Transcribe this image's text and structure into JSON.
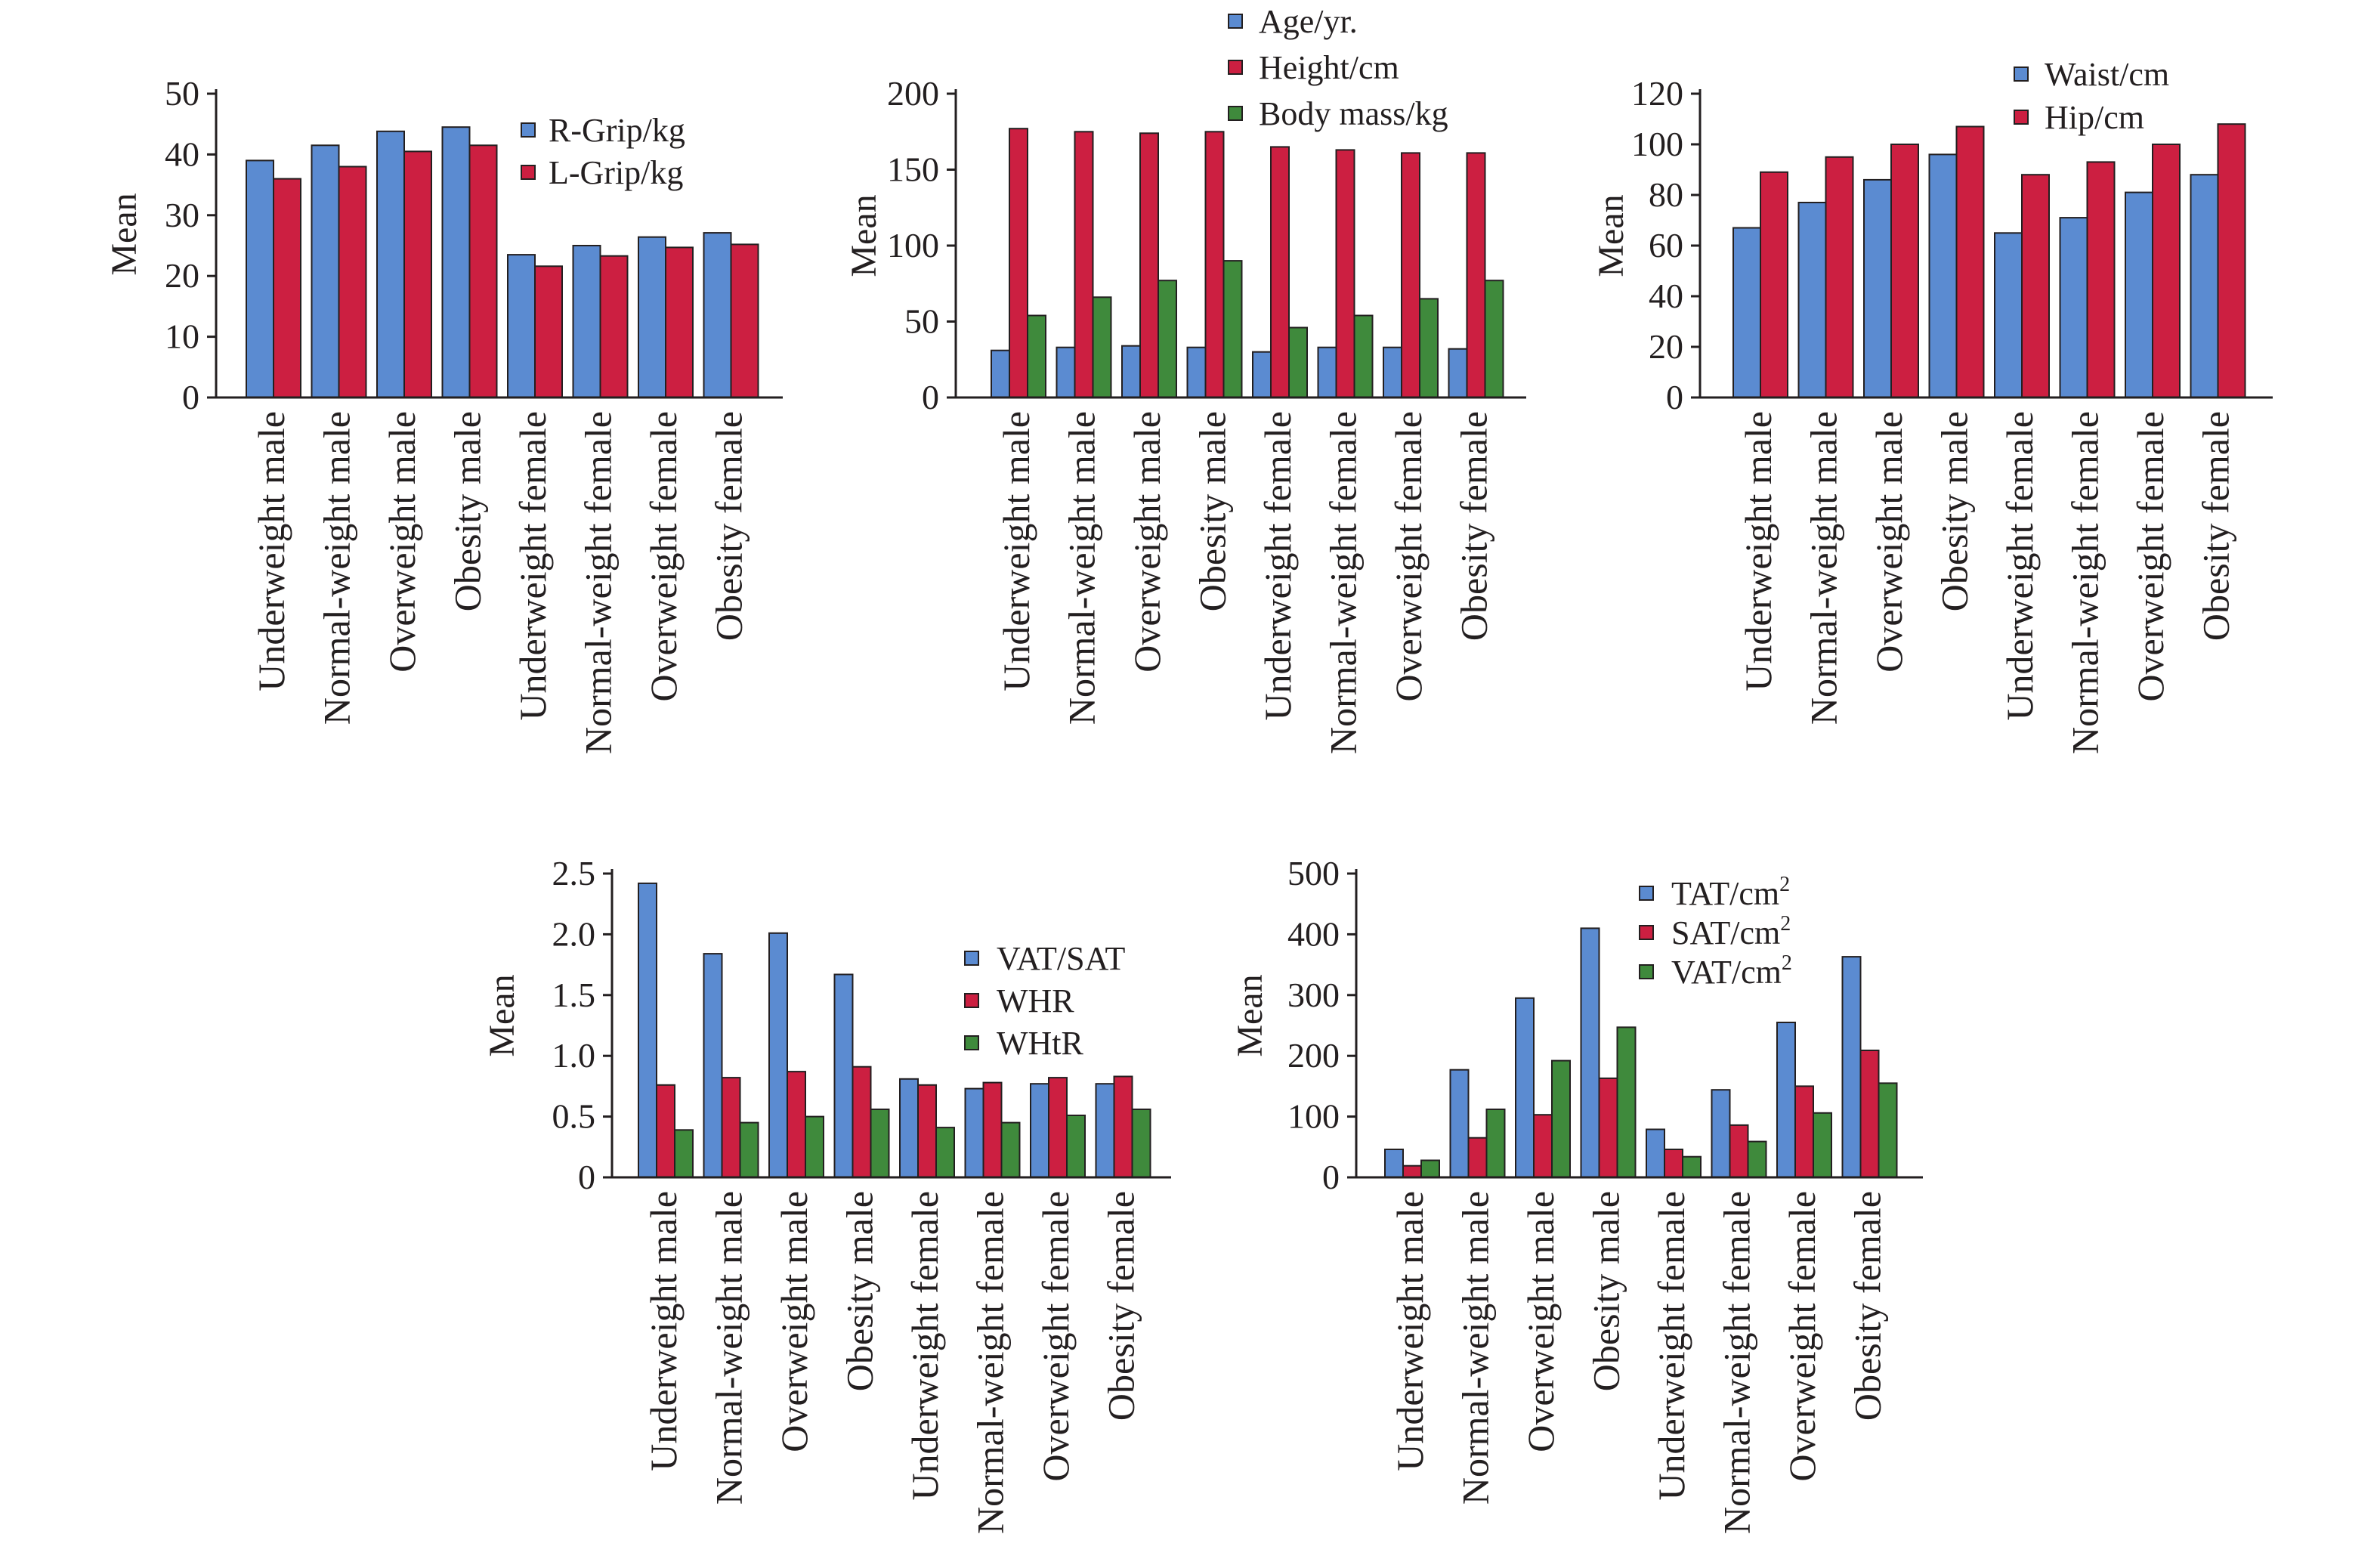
{
  "colors": {
    "blue": "#5b8bd1",
    "red": "#cc1f41",
    "green": "#3f8a3c",
    "axis": "#231f20"
  },
  "categories": [
    "Underweight male",
    "Normal-weight male",
    "Overweight male",
    "Obesity male",
    "Underweight female",
    "Normal-weight female",
    "Overweight female",
    "Obesity female"
  ],
  "chart_data": [
    {
      "type": "bar",
      "ylabel": "Mean",
      "ylim": [
        0,
        50
      ],
      "yticks": [
        "0",
        "10",
        "20",
        "30",
        "40",
        "50"
      ],
      "legend_position": "top-right",
      "series": [
        {
          "name": "R-Grip/kg",
          "color": "#5b8bd1",
          "values": [
            39.0,
            41.5,
            43.8,
            44.5,
            23.5,
            25.0,
            26.4,
            27.1
          ]
        },
        {
          "name": "L-Grip/kg",
          "color": "#cc1f41",
          "values": [
            36.0,
            38.0,
            40.5,
            41.5,
            21.6,
            23.3,
            24.7,
            25.2
          ]
        }
      ]
    },
    {
      "type": "bar",
      "ylabel": "Mean",
      "ylim": [
        0,
        200
      ],
      "yticks": [
        "0",
        "50",
        "100",
        "150",
        "200"
      ],
      "legend_position": "top",
      "series": [
        {
          "name": "Age/yr.",
          "color": "#5b8bd1",
          "values": [
            31,
            33,
            34,
            33,
            30,
            33,
            33,
            32
          ]
        },
        {
          "name": "Height/cm",
          "color": "#cc1f41",
          "values": [
            177,
            175,
            174,
            175,
            165,
            163,
            161,
            161
          ]
        },
        {
          "name": "Body mass/kg",
          "color": "#3f8a3c",
          "values": [
            54,
            66,
            77,
            90,
            46,
            54,
            65,
            77
          ]
        }
      ]
    },
    {
      "type": "bar",
      "ylabel": "Mean",
      "ylim": [
        0,
        120
      ],
      "yticks": [
        "0",
        "20",
        "40",
        "60",
        "80",
        "100",
        "120"
      ],
      "legend_position": "top-right",
      "series": [
        {
          "name": "Waist/cm",
          "color": "#5b8bd1",
          "values": [
            67,
            77,
            86,
            96,
            65,
            71,
            81,
            88
          ]
        },
        {
          "name": "Hip/cm",
          "color": "#cc1f41",
          "values": [
            89,
            95,
            100,
            107,
            88,
            93,
            100,
            108
          ]
        }
      ]
    },
    {
      "type": "bar",
      "ylabel": "Mean",
      "ylim": [
        0,
        2.5
      ],
      "yticks": [
        "0",
        "0.5",
        "1.0",
        "1.5",
        "2.0",
        "2.5"
      ],
      "legend_position": "right",
      "series": [
        {
          "name": "VAT/SAT",
          "color": "#5b8bd1",
          "values": [
            2.42,
            1.84,
            2.01,
            1.67,
            0.81,
            0.73,
            0.77,
            0.77
          ]
        },
        {
          "name": "WHR",
          "color": "#cc1f41",
          "values": [
            0.76,
            0.82,
            0.87,
            0.91,
            0.76,
            0.78,
            0.82,
            0.83
          ]
        },
        {
          "name": "WHtR",
          "color": "#3f8a3c",
          "values": [
            0.39,
            0.45,
            0.5,
            0.56,
            0.41,
            0.45,
            0.51,
            0.56
          ]
        }
      ]
    },
    {
      "type": "bar",
      "ylabel": "Mean",
      "ylim": [
        0,
        500
      ],
      "yticks": [
        "0",
        "100",
        "200",
        "300",
        "400",
        "500"
      ],
      "legend_position": "top",
      "series": [
        {
          "name": "TAT/cm",
          "sup": "2",
          "color": "#5b8bd1",
          "values": [
            46,
            177,
            295,
            410,
            79,
            144,
            255,
            363
          ]
        },
        {
          "name": "SAT/cm",
          "sup": "2",
          "color": "#cc1f41",
          "values": [
            19,
            65,
            103,
            163,
            46,
            86,
            150,
            209
          ]
        },
        {
          "name": "VAT/cm",
          "sup": "2",
          "color": "#3f8a3c",
          "values": [
            28,
            112,
            192,
            247,
            34,
            59,
            106,
            155
          ]
        }
      ]
    }
  ]
}
